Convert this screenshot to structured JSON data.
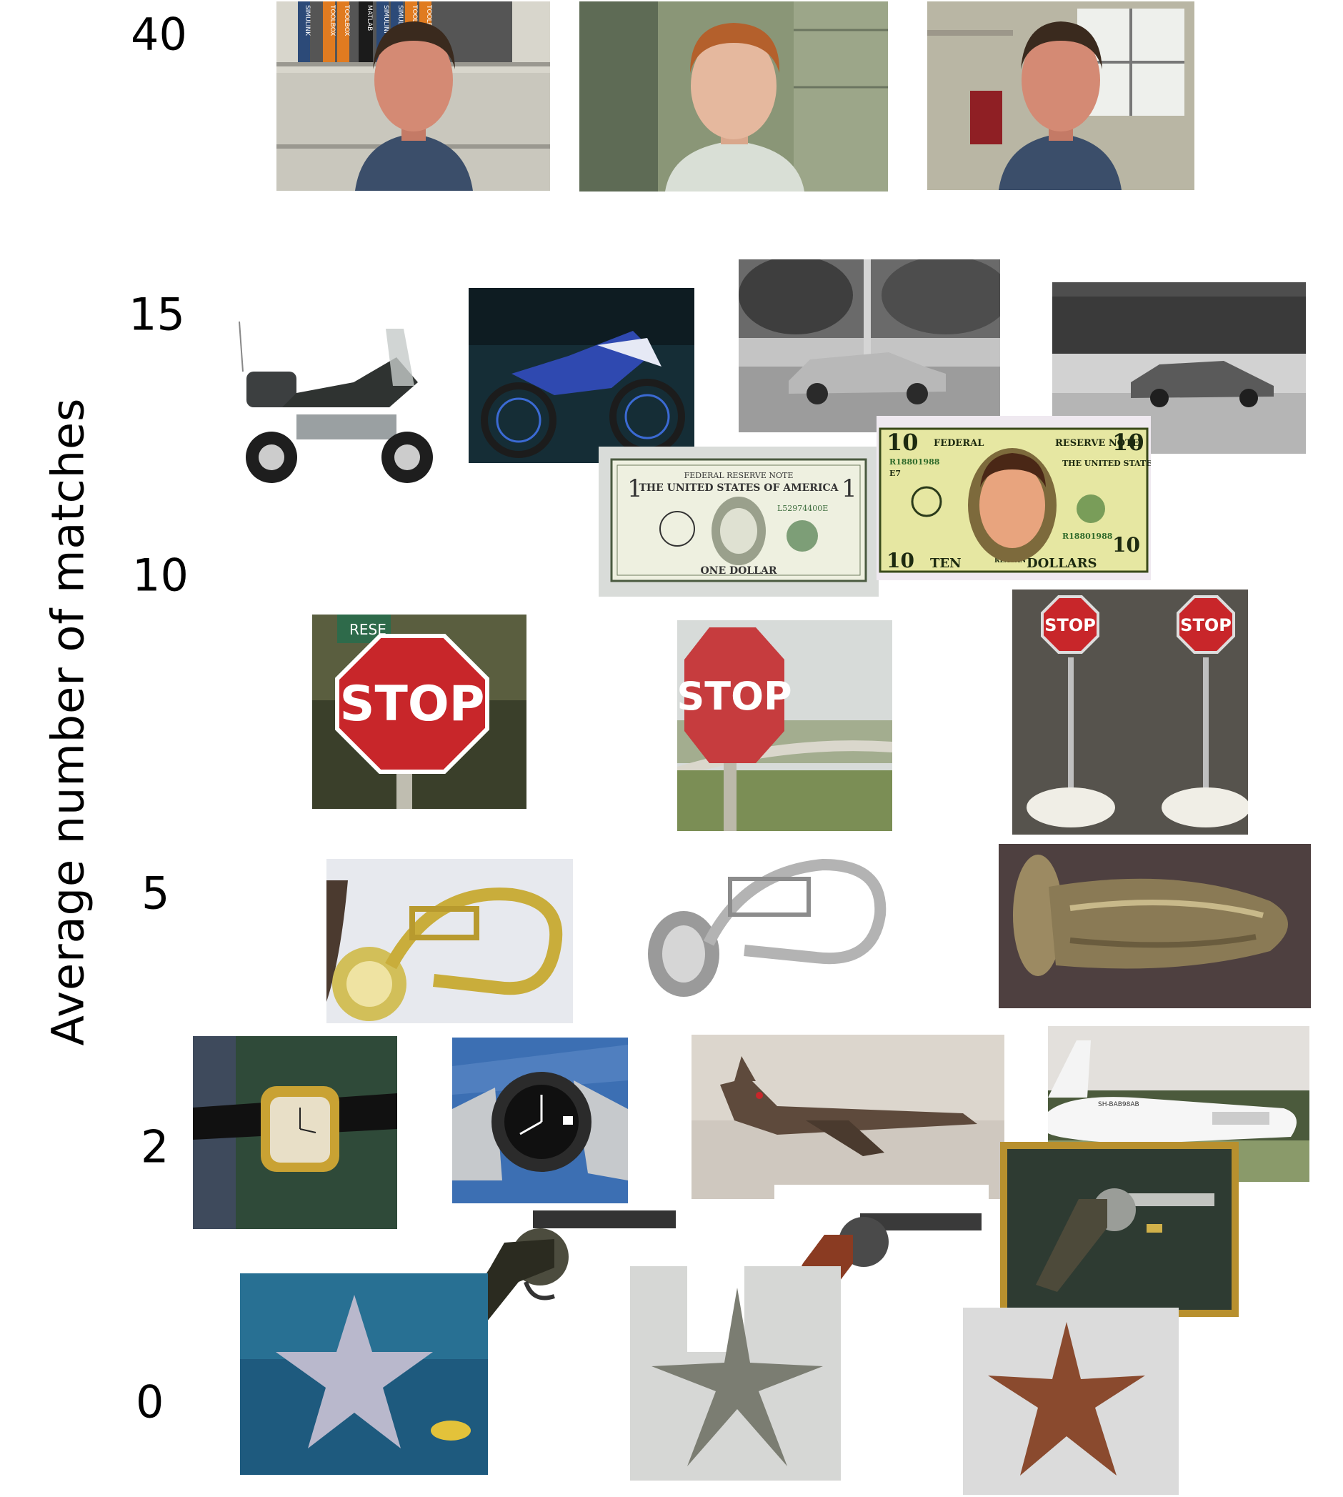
{
  "y_axis": {
    "label": "Average number of matches",
    "ticks": [
      "40",
      "15",
      "10",
      "5",
      "2",
      "0"
    ]
  },
  "rows": [
    {
      "tick": "40",
      "images": [
        "face-1",
        "face-2",
        "face-3"
      ]
    },
    {
      "tick": "15",
      "images": [
        "touring-motorcycle",
        "dirt-bike",
        "sedan-street",
        "hatchback-street"
      ]
    },
    {
      "tick": "10",
      "images": [
        "dollar-bill",
        "ten-dollar-bill",
        "stop-sign-field",
        "stop-sign-road",
        "stop-sign-models"
      ]
    },
    {
      "tick": "5",
      "images": [
        "euphonium-gold",
        "euphonium-silver",
        "tuba-dark"
      ]
    },
    {
      "tick": "2",
      "images": [
        "wristwatch-gold",
        "wristwatch-steel",
        "harrier-jet",
        "cargo-plane"
      ]
    },
    {
      "tick": "0",
      "images": [
        "revolver-black",
        "revolver-target",
        "revolver-framed",
        "starfish-aquarium",
        "starfish-silver",
        "starfish-brown"
      ]
    }
  ],
  "printed_text": {
    "binder_spines": [
      "SIMULINK",
      "TOOLBOX",
      "TOOLBOX",
      "MATLAB",
      "SIMULINK",
      "SIMULINK",
      "TOOLBOX",
      "TOOLBOX"
    ],
    "stop_sign": "STOP",
    "stop_sign_top": "RESE",
    "dollar_bill": {
      "header": "FEDERAL RESERVE NOTE",
      "country": "THE UNITED STATES OF AMERICA",
      "serial": "L52974400E",
      "denomination": "ONE DOLLAR",
      "corner": "1"
    },
    "ten_bill": {
      "left_header": "FEDERAL",
      "right_header": "RESERVE NOTE",
      "country": "THE UNITED STATES OF AMERICA",
      "serial": "R18801988",
      "district": "E7",
      "corner": "10",
      "ten": "TEN",
      "name": "REAGAN",
      "dollars": "DOLLARS"
    },
    "plane_code": "SH-BAB98AB"
  },
  "colors": {
    "stop_red": "#c8262a",
    "tick_text": "#000000",
    "frame_gold": "#b8902e"
  }
}
